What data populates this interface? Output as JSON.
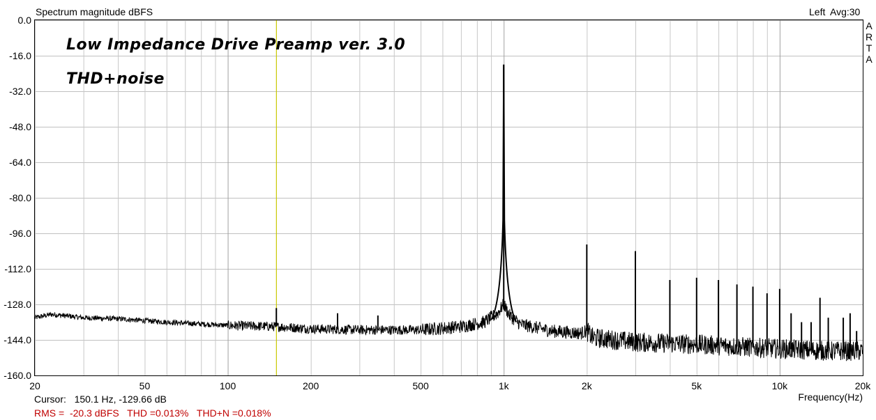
{
  "chart_data": {
    "type": "line",
    "title": "Spectrum magnitude dBFS",
    "channel_label": "Left",
    "avg_label": "Avg:30",
    "brand_letters": [
      "A",
      "R",
      "T",
      "A"
    ],
    "annotations": [
      "Low Impedance Drive Preamp ver. 3.0",
      "THD+noise"
    ],
    "xlabel": "Frequency(Hz)",
    "ylabel": "",
    "x_scale": "log",
    "xlim": [
      20,
      20000
    ],
    "ylim": [
      -160,
      0
    ],
    "grid": true,
    "y_ticks": [
      "0.0",
      "-16.0",
      "-32.0",
      "-48.0",
      "-64.0",
      "-80.0",
      "-96.0",
      "-112.0",
      "-128.0",
      "-144.0",
      "-160.0"
    ],
    "y_tick_values": [
      0,
      -16,
      -32,
      -48,
      -64,
      -80,
      -96,
      -112,
      -128,
      -144,
      -160
    ],
    "x_ticks": [
      "20",
      "50",
      "100",
      "200",
      "500",
      "1k",
      "2k",
      "5k",
      "10k",
      "20k"
    ],
    "x_tick_values": [
      20,
      50,
      100,
      200,
      500,
      1000,
      2000,
      5000,
      10000,
      20000
    ],
    "cursor_freq": 150.1,
    "series": [
      {
        "color": "#000000",
        "noise_floor": [
          [
            20,
            -134
          ],
          [
            23,
            -132.5
          ],
          [
            30,
            -134
          ],
          [
            40,
            -134.5
          ],
          [
            60,
            -136
          ],
          [
            100,
            -137.5
          ],
          [
            150,
            -138
          ],
          [
            200,
            -139
          ],
          [
            300,
            -139.5
          ],
          [
            500,
            -139.5
          ],
          [
            700,
            -138
          ],
          [
            850,
            -136
          ],
          [
            950,
            -132
          ],
          [
            1000,
            -128
          ],
          [
            1050,
            -133
          ],
          [
            1150,
            -137
          ],
          [
            1500,
            -140
          ],
          [
            1900,
            -141
          ],
          [
            2000,
            -140
          ],
          [
            2100,
            -143
          ],
          [
            3000,
            -145
          ],
          [
            5000,
            -146
          ],
          [
            10000,
            -148
          ],
          [
            15000,
            -149
          ],
          [
            20000,
            -149
          ]
        ],
        "peaks": [
          {
            "x": 150,
            "y": -129.66
          },
          {
            "x": 250,
            "y": -132
          },
          {
            "x": 350,
            "y": -133
          },
          {
            "x": 1000,
            "y": -20
          },
          {
            "x": 2000,
            "y": -101
          },
          {
            "x": 3000,
            "y": -104
          },
          {
            "x": 4000,
            "y": -117
          },
          {
            "x": 5000,
            "y": -116
          },
          {
            "x": 6000,
            "y": -117
          },
          {
            "x": 7000,
            "y": -119
          },
          {
            "x": 8000,
            "y": -120
          },
          {
            "x": 9000,
            "y": -123
          },
          {
            "x": 10000,
            "y": -121
          },
          {
            "x": 11000,
            "y": -132
          },
          {
            "x": 12000,
            "y": -136
          },
          {
            "x": 13000,
            "y": -136
          },
          {
            "x": 14000,
            "y": -125
          },
          {
            "x": 15000,
            "y": -134
          },
          {
            "x": 17000,
            "y": -134
          },
          {
            "x": 18000,
            "y": -132
          },
          {
            "x": 19000,
            "y": -140
          }
        ]
      }
    ]
  },
  "status": {
    "cursor_text": "Cursor:   150.1 Hz, -129.66 dB",
    "rms_text": "RMS =  -20.3 dBFS   THD =0.013%   THD+N =0.018%"
  }
}
